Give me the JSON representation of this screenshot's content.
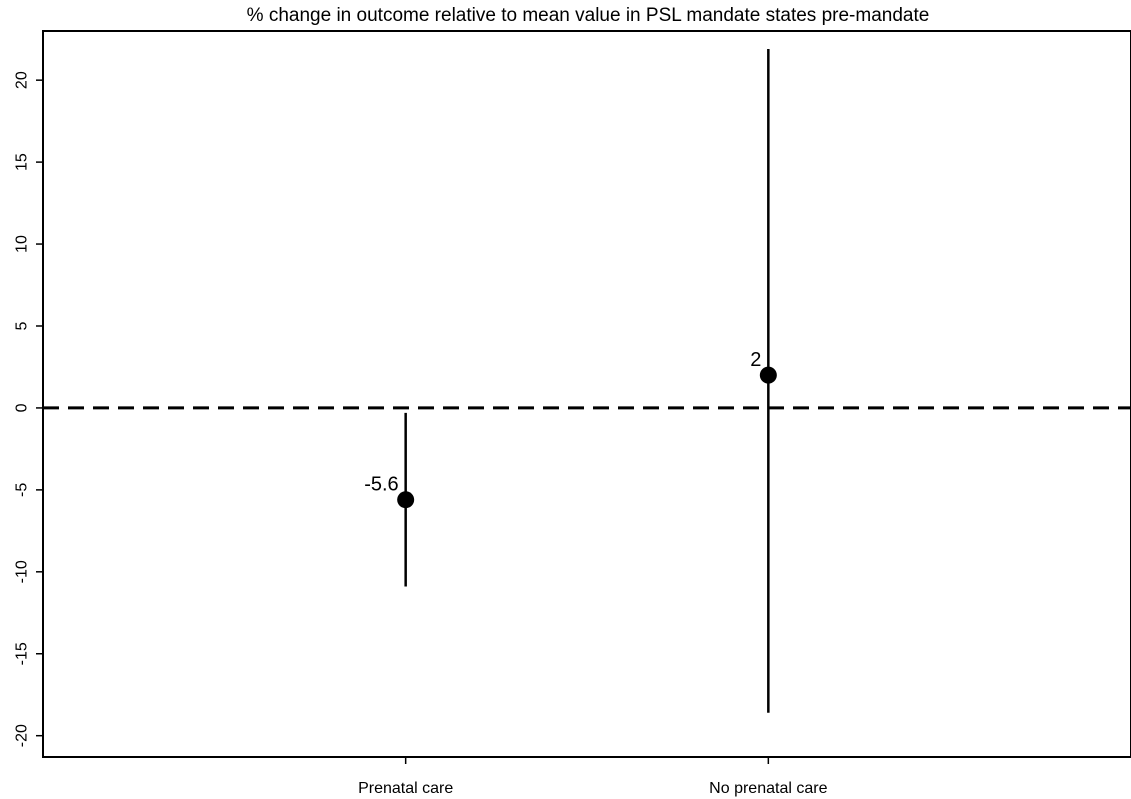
{
  "chart_data": {
    "type": "scatter",
    "title": "% change in outcome relative to mean value in PSL mandate states pre-mandate",
    "xlabel": "",
    "ylabel": "",
    "categories": [
      "Prenatal care",
      "No prenatal care"
    ],
    "points": [
      {
        "category": "Prenatal care",
        "estimate": -5.6,
        "ci_low": -10.9,
        "ci_high": -0.3,
        "label": "-5.6"
      },
      {
        "category": "No prenatal care",
        "estimate": 2,
        "ci_low": -18.6,
        "ci_high": 21.9,
        "label": "2"
      }
    ],
    "ylim": [
      -21.3,
      23
    ],
    "xlim": [
      0,
      3
    ],
    "yticks": [
      -20,
      -15,
      -10,
      -5,
      0,
      5,
      10,
      15,
      20
    ],
    "ytick_labels": [
      "-20",
      "-15",
      "-10",
      "-5",
      "0",
      "5",
      "10",
      "15",
      "20"
    ],
    "reference_line": {
      "y": 0,
      "style": "dashed"
    },
    "grid": false,
    "legend": "none"
  }
}
